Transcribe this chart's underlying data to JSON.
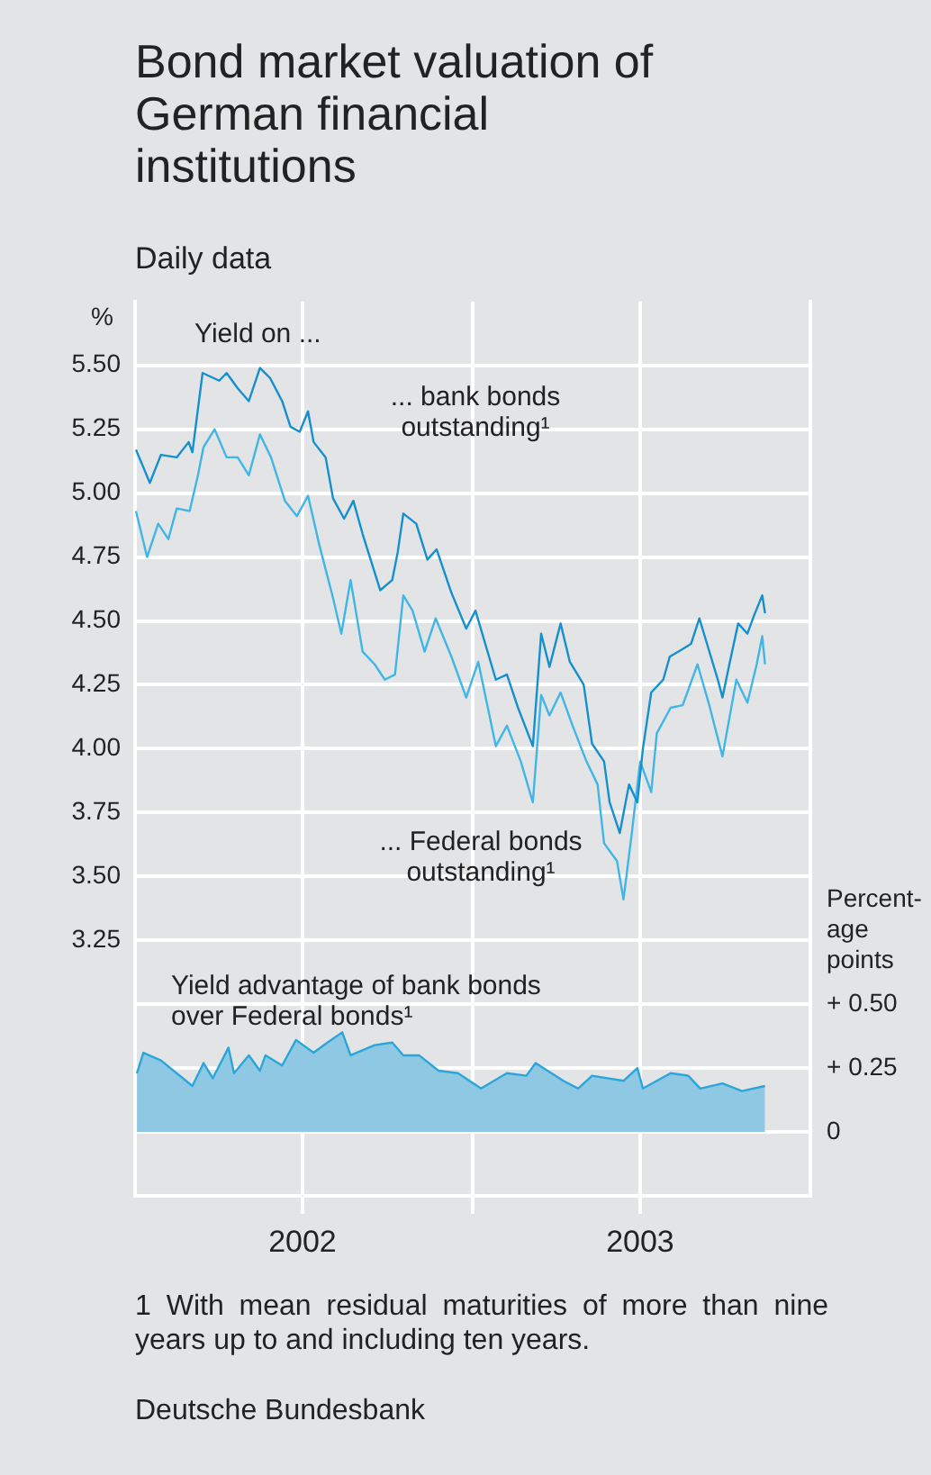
{
  "chart_data": {
    "type": "line",
    "title": "Bond market valuation of German financial institutions",
    "subtitle": "Daily data",
    "ylabel": "%",
    "y2label": "Percent-\nage\npoints",
    "xlim": [
      "2002-01-01",
      "2004-01-01"
    ],
    "xticks": [
      {
        "value": "2002-07-01",
        "label": "2002"
      },
      {
        "value": "2003-01-01",
        "label": null
      },
      {
        "value": "2003-07-01",
        "label": "2003"
      }
    ],
    "ylim": [
      2.25,
      5.75
    ],
    "yticks": [
      {
        "value": 3.25,
        "label": "3.25"
      },
      {
        "value": 3.5,
        "label": "3.50"
      },
      {
        "value": 3.75,
        "label": "3.75"
      },
      {
        "value": 4,
        "label": "4.00"
      },
      {
        "value": 4.25,
        "label": "4.25"
      },
      {
        "value": 4.5,
        "label": "4.50"
      },
      {
        "value": 4.75,
        "label": "4.75"
      },
      {
        "value": 5,
        "label": "5.00"
      },
      {
        "value": 5.25,
        "label": "5.25"
      },
      {
        "value": 5.5,
        "label": "5.50"
      }
    ],
    "y2lim": [
      -0.25,
      3.25
    ],
    "y2ticks": [
      {
        "value": 0,
        "label": "0"
      },
      {
        "value": 0.25,
        "label": "+ 0.25"
      },
      {
        "value": 0.5,
        "label": "+ 0.50"
      }
    ],
    "grid": true,
    "marker": "none",
    "line_style": "solid",
    "series": [
      {
        "type": "line",
        "color": "#1590cf",
        "x": [
          "2002-01-02",
          "2002-01-17",
          "2002-01-29",
          "2002-02-15",
          "2002-02-28",
          "2002-03-04",
          "2002-03-10",
          "2002-03-15",
          "2002-04-02",
          "2002-04-10",
          "2002-04-22",
          "2002-05-04",
          "2002-05-16",
          "2002-05-27",
          "2002-06-09",
          "2002-06-18",
          "2002-06-28",
          "2002-07-07",
          "2002-07-13",
          "2002-07-26",
          "2002-08-03",
          "2002-08-15",
          "2002-08-25",
          "2002-09-04",
          "2002-09-17",
          "2002-09-23",
          "2002-10-06",
          "2002-10-12",
          "2002-10-18",
          "2002-11-01",
          "2002-11-13",
          "2002-11-23",
          "2002-12-09",
          "2002-12-25",
          "2003-01-04",
          "2003-01-26",
          "2003-02-07",
          "2003-02-19",
          "2003-03-07",
          "2003-03-16",
          "2003-03-25",
          "2003-04-06",
          "2003-04-16",
          "2003-05-01",
          "2003-05-10",
          "2003-05-23",
          "2003-05-29",
          "2003-06-09",
          "2003-06-19",
          "2003-06-28",
          "2003-07-04",
          "2003-07-13",
          "2003-07-26",
          "2003-08-02",
          "2003-08-16",
          "2003-08-25",
          "2003-09-03",
          "2003-09-13",
          "2003-09-23",
          "2003-09-28",
          "2003-10-06",
          "2003-10-15",
          "2003-10-25",
          "2003-11-01",
          "2003-11-10",
          "2003-11-13"
        ],
        "values": [
          5.17,
          5.04,
          5.15,
          5.14,
          5.2,
          5.16,
          5.33,
          5.47,
          5.44,
          5.47,
          5.41,
          5.36,
          5.49,
          5.45,
          5.36,
          5.26,
          5.24,
          5.32,
          5.2,
          5.14,
          4.98,
          4.9,
          4.97,
          4.84,
          4.69,
          4.62,
          4.66,
          4.77,
          4.92,
          4.88,
          4.74,
          4.78,
          4.61,
          4.47,
          4.54,
          4.27,
          4.29,
          4.16,
          4.01,
          4.45,
          4.32,
          4.49,
          4.34,
          4.25,
          4.02,
          3.95,
          3.79,
          3.67,
          3.86,
          3.79,
          4.0,
          4.22,
          4.27,
          4.36,
          4.39,
          4.41,
          4.51,
          4.39,
          4.27,
          4.2,
          4.34,
          4.49,
          4.45,
          4.52,
          4.6,
          4.53
        ]
      },
      {
        "type": "line",
        "color": "#40b6e6",
        "x": [
          "2002-01-02",
          "2002-01-14",
          "2002-01-26",
          "2002-02-06",
          "2002-02-15",
          "2002-03-01",
          "2002-03-10",
          "2002-03-16",
          "2002-03-28",
          "2002-04-10",
          "2002-04-22",
          "2002-05-04",
          "2002-05-16",
          "2002-05-28",
          "2002-06-12",
          "2002-06-25",
          "2002-07-07",
          "2002-07-19",
          "2002-08-03",
          "2002-08-12",
          "2002-08-22",
          "2002-09-04",
          "2002-09-17",
          "2002-09-28",
          "2002-10-09",
          "2002-10-18",
          "2002-10-28",
          "2002-11-10",
          "2002-11-22",
          "2002-12-09",
          "2002-12-25",
          "2003-01-07",
          "2003-01-26",
          "2003-02-07",
          "2003-02-22",
          "2003-03-07",
          "2003-03-16",
          "2003-03-25",
          "2003-04-06",
          "2003-04-19",
          "2003-05-04",
          "2003-05-16",
          "2003-05-23",
          "2003-06-06",
          "2003-06-13",
          "2003-06-22",
          "2003-07-01",
          "2003-07-13",
          "2003-07-19",
          "2003-08-03",
          "2003-08-16",
          "2003-09-01",
          "2003-09-13",
          "2003-09-28",
          "2003-10-13",
          "2003-10-25",
          "2003-11-04",
          "2003-11-10",
          "2003-11-13"
        ],
        "values": [
          4.93,
          4.75,
          4.88,
          4.82,
          4.94,
          4.93,
          5.07,
          5.18,
          5.25,
          5.14,
          5.14,
          5.07,
          5.23,
          5.14,
          4.97,
          4.91,
          4.99,
          4.8,
          4.59,
          4.45,
          4.66,
          4.38,
          4.33,
          4.27,
          4.29,
          4.6,
          4.54,
          4.38,
          4.51,
          4.36,
          4.2,
          4.34,
          4.01,
          4.09,
          3.95,
          3.79,
          4.21,
          4.13,
          4.22,
          4.09,
          3.95,
          3.86,
          3.63,
          3.56,
          3.41,
          3.67,
          3.95,
          3.83,
          4.06,
          4.16,
          4.17,
          4.33,
          4.18,
          3.97,
          4.27,
          4.18,
          4.33,
          4.44,
          4.33
        ]
      },
      {
        "type": "area",
        "axis": "y2",
        "color": "#8fc8e3",
        "x": [
          "2002-01-03",
          "2002-01-10",
          "2002-01-29",
          "2002-03-04",
          "2002-03-16",
          "2002-03-26",
          "2002-04-12",
          "2002-04-18",
          "2002-05-04",
          "2002-05-16",
          "2002-05-22",
          "2002-06-09",
          "2002-06-24",
          "2002-07-13",
          "2002-07-28",
          "2002-08-13",
          "2002-08-22",
          "2002-09-17",
          "2002-10-06",
          "2002-10-18",
          "2002-11-04",
          "2002-11-25",
          "2002-12-16",
          "2003-01-10",
          "2003-02-07",
          "2003-02-28",
          "2003-03-10",
          "2003-04-09",
          "2003-04-25",
          "2003-05-10",
          "2003-06-13",
          "2003-06-28",
          "2003-07-04",
          "2003-08-03",
          "2003-08-22",
          "2003-09-04",
          "2003-09-28",
          "2003-10-19",
          "2003-11-13"
        ],
        "values": [
          0.23,
          0.31,
          0.28,
          0.18,
          0.27,
          0.21,
          0.33,
          0.23,
          0.3,
          0.24,
          0.3,
          0.26,
          0.36,
          0.31,
          0.35,
          0.39,
          0.3,
          0.34,
          0.35,
          0.3,
          0.3,
          0.24,
          0.23,
          0.17,
          0.23,
          0.22,
          0.27,
          0.2,
          0.17,
          0.22,
          0.2,
          0.25,
          0.17,
          0.23,
          0.22,
          0.17,
          0.19,
          0.16,
          0.18
        ]
      }
    ],
    "annotations": [
      "Yield on ...",
      "... bank bonds\noutstanding¹",
      "... Federal bonds\noutstanding¹",
      "Yield advantage of bank bonds\nover Federal bonds¹",
      "1 With mean residual maturities of more than nine years up to and including ten years.",
      "Deutsche Bundesbank"
    ]
  }
}
